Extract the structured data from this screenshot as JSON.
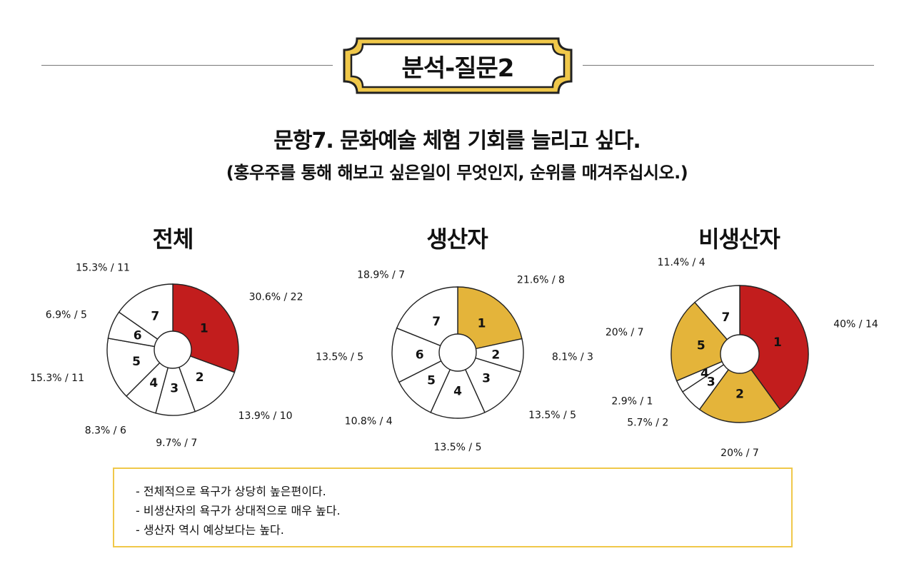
{
  "header": {
    "title": "분석-질문2"
  },
  "question": {
    "line1": "문항7. 문화예술 체험 기회를 늘리고 싶다.",
    "line2": "(홍우주를 통해 해보고 싶은일이 무엇인지, 순위를 매겨주십시오.)"
  },
  "colors": {
    "red": "#c21d1d",
    "gold": "#e4b43a",
    "white": "#ffffff",
    "border_gold": "#f0c84a",
    "badge_stroke": "#222222"
  },
  "chart_data": [
    {
      "type": "pie",
      "title": "전체",
      "categories": [
        "1",
        "2",
        "3",
        "4",
        "5",
        "6",
        "7"
      ],
      "values": [
        30.6,
        13.9,
        9.7,
        8.3,
        15.3,
        6.9,
        15.3
      ],
      "counts": [
        22,
        10,
        7,
        6,
        11,
        5,
        11
      ],
      "labels": [
        "30.6% / 22",
        "13.9% / 10",
        "9.7% / 7",
        "8.3% / 6",
        "15.3% / 11",
        "6.9% / 5",
        "15.3% / 11"
      ],
      "highlight": [
        "#c21d1d",
        "#ffffff",
        "#ffffff",
        "#ffffff",
        "#ffffff",
        "#ffffff",
        "#ffffff"
      ]
    },
    {
      "type": "pie",
      "title": "생산자",
      "categories": [
        "1",
        "2",
        "3",
        "4",
        "5",
        "6",
        "7"
      ],
      "values": [
        21.6,
        8.1,
        13.5,
        13.5,
        10.8,
        13.5,
        18.9
      ],
      "counts": [
        8,
        3,
        5,
        5,
        4,
        5,
        7
      ],
      "labels": [
        "21.6% / 8",
        "8.1% / 3",
        "13.5% / 5",
        "13.5% / 5",
        "10.8% / 4",
        "13.5% / 5",
        "18.9% / 7"
      ],
      "highlight": [
        "#e4b43a",
        "#ffffff",
        "#ffffff",
        "#ffffff",
        "#ffffff",
        "#ffffff",
        "#ffffff"
      ]
    },
    {
      "type": "pie",
      "title": "비생산자",
      "categories": [
        "1",
        "2",
        "3",
        "4",
        "5",
        "7"
      ],
      "values": [
        40,
        20,
        5.7,
        2.9,
        20,
        11.4
      ],
      "counts": [
        14,
        7,
        2,
        1,
        7,
        4
      ],
      "labels": [
        "40% / 14",
        "20% / 7",
        "5.7% / 2",
        "2.9% / 1",
        "20% / 7",
        "11.4% / 4"
      ],
      "highlight": [
        "#c21d1d",
        "#e4b43a",
        "#ffffff",
        "#ffffff",
        "#e4b43a",
        "#ffffff"
      ]
    }
  ],
  "notes": [
    "- 전체적으로 욕구가 상당히 높은편이다.",
    "- 비생산자의 욕구가 상대적으로 매우 높다.",
    "- 생산자 역시 예상보다는 높다."
  ]
}
